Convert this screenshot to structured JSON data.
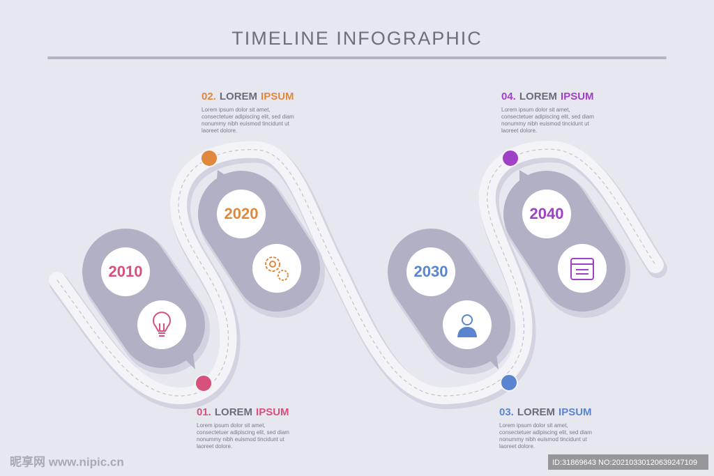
{
  "title": "TIMELINE INFOGRAPHIC",
  "steps": [
    {
      "number": "01.",
      "word_a": "LOREM",
      "word_b": "IPSUM",
      "year": "2010",
      "color": "#d6517c",
      "text": [
        "Lorem ipsum dolor sit amet,",
        "consectetuer adipiscing elit, sed diam",
        "nonummy nibh euismod tincidunt ut",
        "laoreet dolore."
      ]
    },
    {
      "number": "02.",
      "word_a": "LOREM",
      "word_b": "IPSUM",
      "year": "2020",
      "color": "#e0883c",
      "text": [
        "Lorem ipsum dolor sit amet,",
        "consectetuer adipiscing elit, sed diam",
        "nonummy nibh euismod tincidunt ut",
        "laoreet dolore."
      ]
    },
    {
      "number": "03.",
      "word_a": "LOREM",
      "word_b": "IPSUM",
      "year": "2030",
      "color": "#5a84cf",
      "text": [
        "Lorem ipsum dolor sit amet,",
        "consectetuer adipiscing elit, sed diam",
        "nonummy nibh euismod tincidunt ut",
        "laoreet dolore."
      ]
    },
    {
      "number": "04.",
      "word_a": "LOREM",
      "word_b": "IPSUM",
      "year": "2040",
      "color": "#a040c6",
      "text": [
        "Lorem ipsum dolor sit amet,",
        "consectetuer adipiscing elit, sed diam",
        "nonummy nibh euismod tincidunt ut",
        "laoreet dolore."
      ]
    }
  ],
  "watermark": {
    "site": "昵享网 www.nipic.cn",
    "id": "ID:31869643 NO:20210330120639247109"
  }
}
